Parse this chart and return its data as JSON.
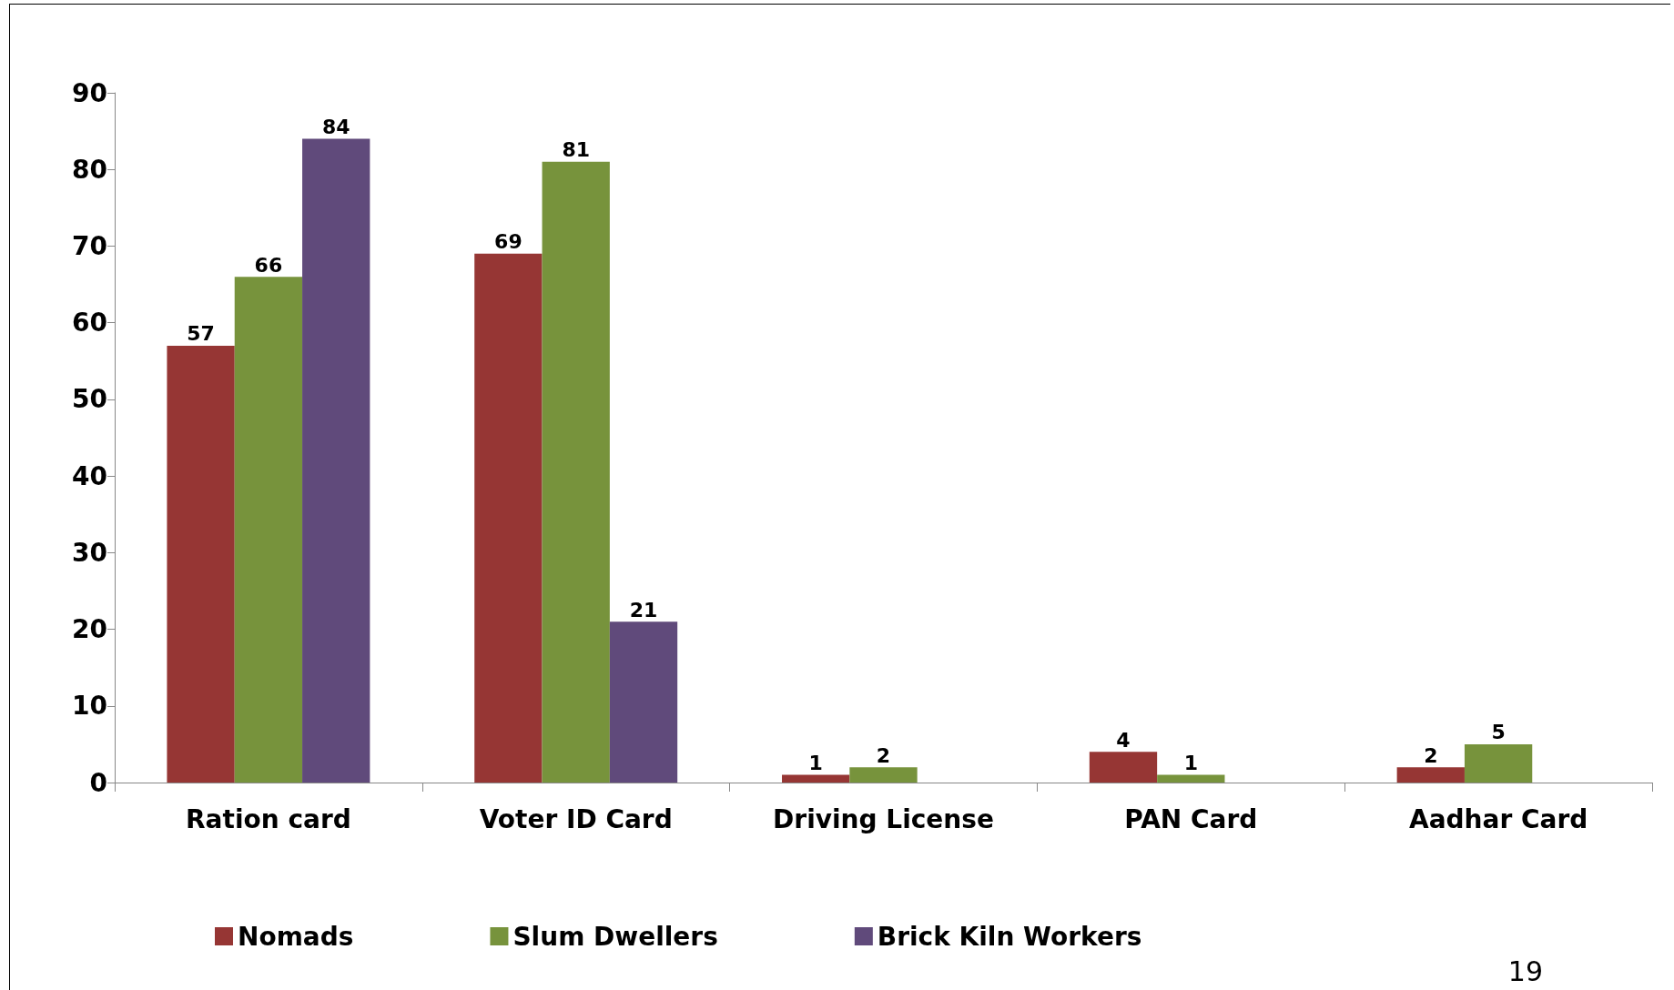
{
  "chart_data": {
    "type": "bar",
    "categories": [
      "Ration card",
      "Voter ID Card",
      "Driving License",
      "PAN Card",
      "Aadhar Card"
    ],
    "series": [
      {
        "name": "Nomads",
        "color": "#963634",
        "values": [
          57,
          69,
          1,
          4,
          2
        ]
      },
      {
        "name": "Slum Dwellers",
        "color": "#77933c",
        "values": [
          66,
          81,
          2,
          1,
          5
        ]
      },
      {
        "name": "Brick Kiln Workers",
        "color": "#604a7b",
        "values": [
          84,
          21,
          null,
          null,
          null
        ]
      }
    ],
    "ylim": [
      0,
      90
    ],
    "yticks": [
      0,
      10,
      20,
      30,
      40,
      50,
      60,
      70,
      80,
      90
    ],
    "grid": false,
    "legend": "bottom",
    "data_labels": true,
    "annotations": [
      "19"
    ]
  }
}
